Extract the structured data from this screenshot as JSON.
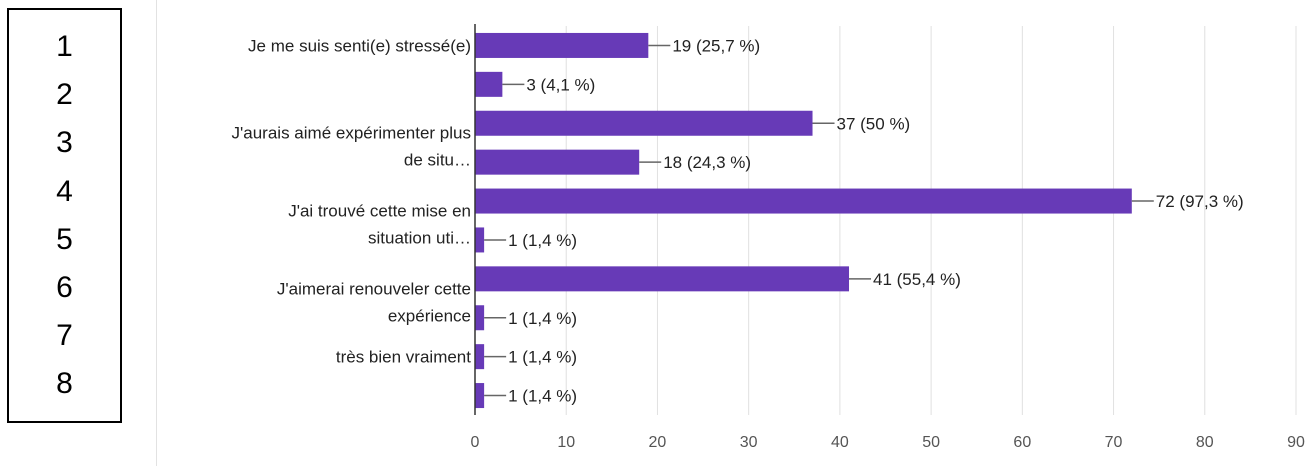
{
  "numbers": [
    "1",
    "2",
    "3",
    "4",
    "5",
    "6",
    "7",
    "8"
  ],
  "chart_data": {
    "type": "bar",
    "orientation": "horizontal",
    "categories": [
      [
        "Je me suis senti(e) stressé(e)"
      ],
      [],
      [
        "J'aurais aimé expérimenter plus",
        "de situ…"
      ],
      [],
      [
        "J'ai trouvé cette mise en",
        "situation uti…"
      ],
      [],
      [
        "J'aimerai renouveler cette",
        "expérience"
      ],
      [],
      [
        "très bien vraiment"
      ],
      []
    ],
    "values": [
      19,
      3,
      37,
      18,
      72,
      1,
      41,
      1,
      1,
      1
    ],
    "value_labels": [
      "19 (25,7 %)",
      "3 (4,1 %)",
      "37 (50 %)",
      "18 (24,3 %)",
      "72 (97,3 %)",
      "1 (1,4 %)",
      "41 (55,4 %)",
      "1 (1,4 %)",
      "1 (1,4 %)",
      "1 (1,4 %)"
    ],
    "xlim": [
      0,
      90
    ],
    "xticks": [
      0,
      10,
      20,
      30,
      40,
      50,
      60,
      70,
      80,
      90
    ],
    "grid": true,
    "bar_color": "#673ab7"
  }
}
